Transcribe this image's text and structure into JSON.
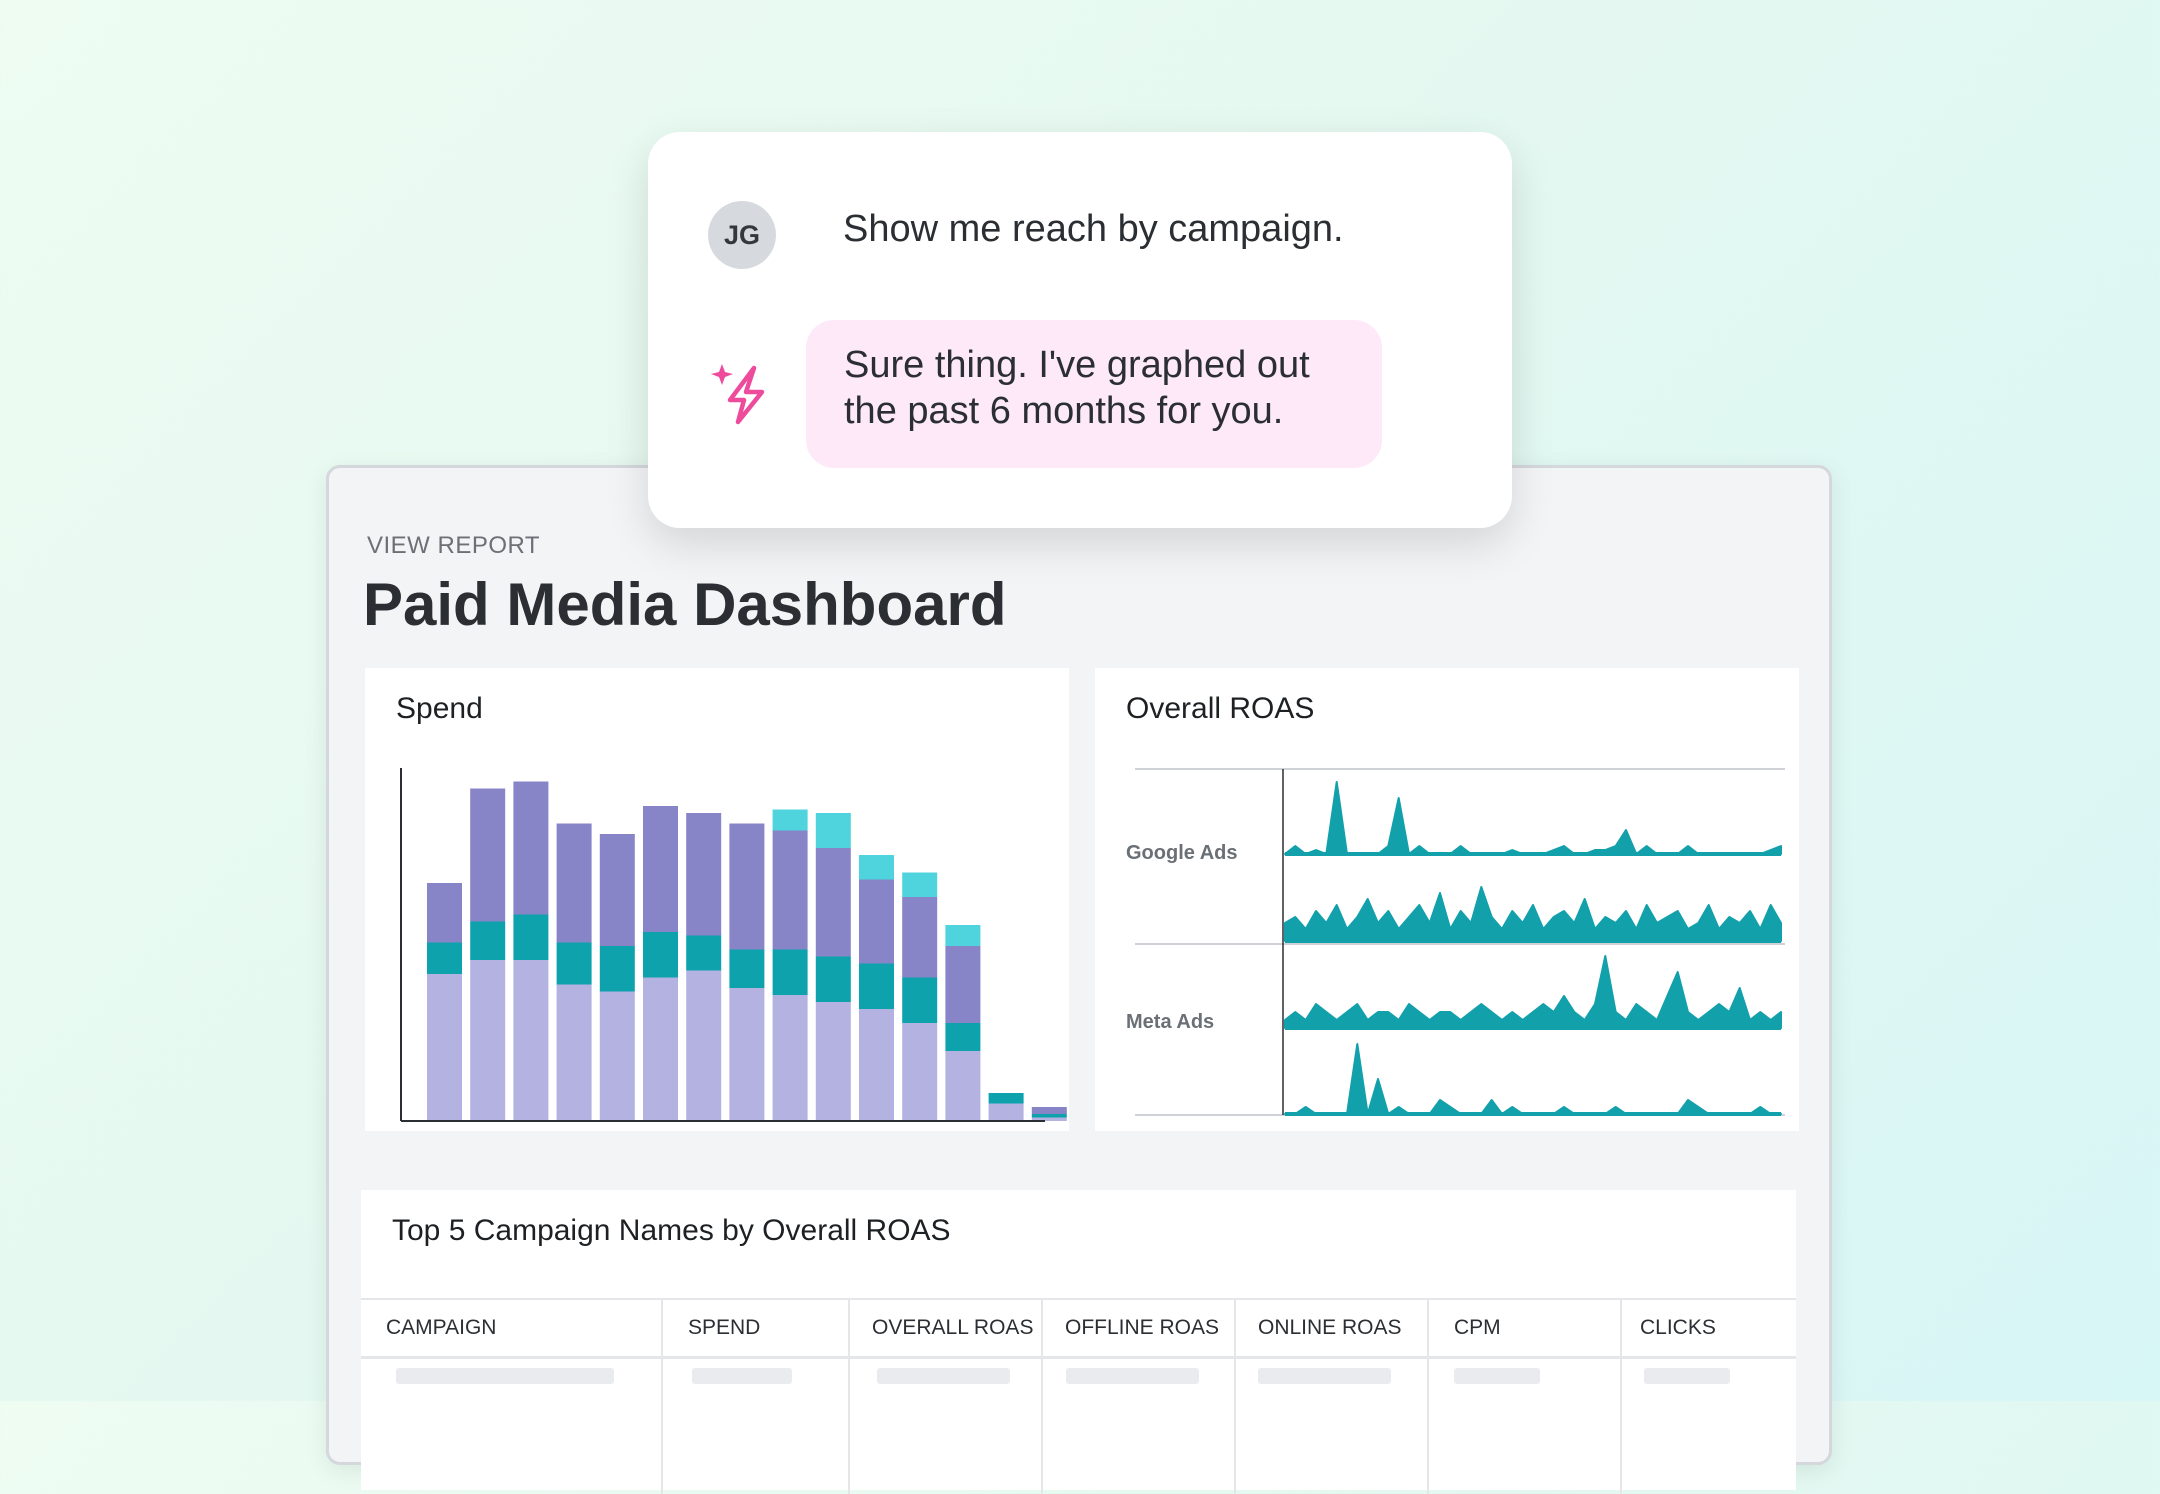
{
  "chat": {
    "user_initials": "JG",
    "user_message": "Show me reach by campaign.",
    "assistant_message": "Sure thing. I've graphed out the past 6 months for you."
  },
  "dashboard": {
    "kicker": "VIEW REPORT",
    "title": "Paid Media Dashboard",
    "spend_card_title": "Spend",
    "roas_card_title": "Overall ROAS",
    "table_title": "Top 5 Campaign Names by Overall ROAS",
    "table_columns": [
      "CAMPAIGN",
      "SPEND",
      "OVERALL ROAS",
      "OFFLINE ROAS",
      "ONLINE ROAS",
      "CPM",
      "CLICKS"
    ]
  },
  "colors": {
    "series_light": "#b4b2e1",
    "series_teal": "#0ea2ad",
    "series_purple": "#8784c8",
    "series_cyan": "#4fd3dc",
    "line_teal": "#12a0ab",
    "sparkle": "#ee4b9d"
  },
  "chart_data": [
    {
      "type": "bar",
      "stacked": true,
      "title": "Spend",
      "categories": [
        "",
        "",
        "",
        "",
        "",
        "",
        "",
        "",
        "",
        "",
        "",
        "",
        "",
        "",
        ""
      ],
      "series": [
        {
          "values": [
            42,
            46,
            46,
            39,
            37,
            41,
            43,
            38,
            36,
            34,
            32,
            28,
            20,
            5,
            1
          ]
        },
        {
          "values": [
            9,
            11,
            13,
            12,
            13,
            13,
            10,
            11,
            13,
            13,
            13,
            13,
            8,
            3,
            1
          ]
        },
        {
          "values": [
            17,
            38,
            38,
            34,
            32,
            36,
            35,
            36,
            34,
            31,
            24,
            23,
            22,
            0,
            2
          ]
        },
        {
          "values": [
            0,
            0,
            0,
            0,
            0,
            0,
            0,
            0,
            6,
            10,
            7,
            7,
            6,
            0,
            0
          ]
        }
      ],
      "ylim": [
        0,
        100
      ],
      "grid": false
    },
    {
      "type": "line",
      "title": "Overall ROAS",
      "row_labels": [
        "Google Ads",
        "Meta Ads"
      ],
      "panels": [
        {
          "row": "Google Ads",
          "peaks": [
            0,
            1,
            0,
            0.5,
            0,
            9,
            0,
            0,
            0,
            0,
            1,
            7,
            0,
            1,
            0,
            0,
            0,
            1,
            0,
            0,
            0,
            0,
            0.5,
            0,
            0,
            0,
            0.5,
            1,
            0,
            0,
            0.5,
            0.5,
            1,
            3,
            0,
            1,
            0,
            0,
            0,
            1,
            0,
            0,
            0,
            0,
            0,
            0,
            0,
            0.5,
            1
          ]
        },
        {
          "row": "Google Ads",
          "peaks": [
            3,
            4,
            2,
            5,
            3,
            6,
            2,
            4,
            7,
            3,
            5,
            2,
            4,
            6,
            3,
            8,
            2,
            5,
            3,
            9,
            4,
            2,
            5,
            3,
            6,
            2,
            4,
            5,
            3,
            7,
            2,
            4,
            3,
            5,
            2,
            6,
            3,
            4,
            5,
            2,
            3,
            6,
            2,
            4,
            3,
            5,
            2,
            6,
            3
          ]
        },
        {
          "row": "Meta Ads",
          "peaks": [
            1,
            2,
            1,
            3,
            2,
            1,
            2,
            3,
            1,
            2,
            2,
            1,
            3,
            2,
            1,
            2,
            2,
            1,
            2,
            3,
            2,
            1,
            2,
            1,
            2,
            3,
            2,
            4,
            2,
            1,
            3,
            9,
            2,
            1,
            3,
            2,
            1,
            4,
            7,
            2,
            1,
            2,
            3,
            2,
            5,
            1,
            2,
            1,
            2
          ]
        },
        {
          "row": "Meta Ads",
          "peaks": [
            0,
            0,
            1,
            0,
            0,
            0,
            0,
            10,
            0,
            5,
            0,
            1,
            0,
            0,
            0,
            2,
            1,
            0,
            0,
            0,
            2,
            0,
            1,
            0,
            0,
            0,
            0,
            1,
            0,
            0,
            0,
            0,
            1,
            0,
            0,
            0,
            0,
            0,
            0,
            2,
            1,
            0,
            0,
            0,
            0,
            0,
            1,
            0,
            0
          ]
        }
      ]
    }
  ]
}
